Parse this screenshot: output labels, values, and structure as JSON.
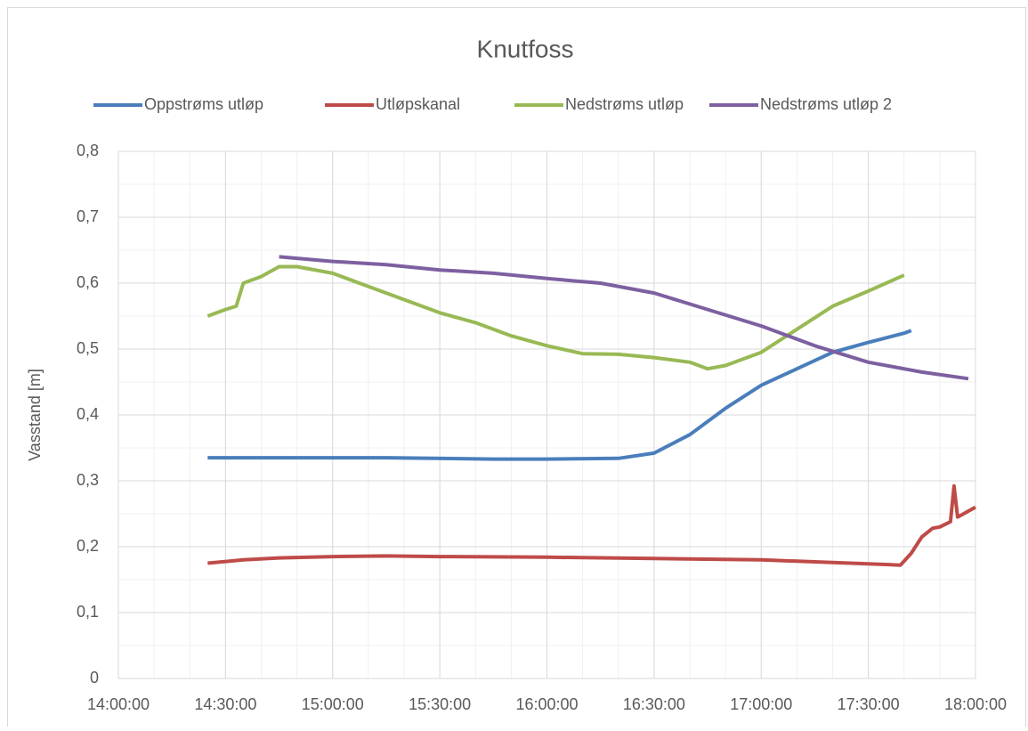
{
  "chart_data": {
    "type": "line",
    "title": "Knutfoss",
    "ylabel": "Vasstand [m]",
    "xlim": [
      "14:00:00",
      "18:00:00"
    ],
    "xticks": [
      "14:00:00",
      "14:30:00",
      "15:00:00",
      "15:30:00",
      "16:00:00",
      "16:30:00",
      "17:00:00",
      "17:30:00",
      "18:00:00"
    ],
    "ylim": [
      0,
      0.8
    ],
    "yticks": [
      {
        "value": 0,
        "label": "0"
      },
      {
        "value": 0.1,
        "label": "0,1"
      },
      {
        "value": 0.2,
        "label": "0,2"
      },
      {
        "value": 0.3,
        "label": "0,3"
      },
      {
        "value": 0.4,
        "label": "0,4"
      },
      {
        "value": 0.5,
        "label": "0,5"
      },
      {
        "value": 0.6,
        "label": "0,6"
      },
      {
        "value": 0.7,
        "label": "0,7"
      },
      {
        "value": 0.8,
        "label": "0,8"
      }
    ],
    "grid": true,
    "legend": "top",
    "series": [
      {
        "name": "Oppstrøms utløp",
        "color": "#4a7ebb",
        "x": [
          "14:25:00",
          "14:45:00",
          "15:15:00",
          "15:45:00",
          "16:00:00",
          "16:20:00",
          "16:30:00",
          "16:40:00",
          "16:50:00",
          "17:00:00",
          "17:10:00",
          "17:20:00",
          "17:30:00",
          "17:40:00",
          "17:42:00"
        ],
        "values": [
          0.335,
          0.335,
          0.335,
          0.333,
          0.333,
          0.334,
          0.342,
          0.37,
          0.41,
          0.445,
          0.47,
          0.495,
          0.51,
          0.524,
          0.528
        ]
      },
      {
        "name": "Utløpskanal",
        "color": "#be4b48",
        "x": [
          "14:25:00",
          "14:35:00",
          "14:45:00",
          "15:00:00",
          "15:15:00",
          "15:30:00",
          "16:00:00",
          "16:30:00",
          "17:00:00",
          "17:20:00",
          "17:35:00",
          "17:39:00",
          "17:42:00",
          "17:45:00",
          "17:48:00",
          "17:50:00",
          "17:53:00",
          "17:54:00",
          "17:55:00",
          "18:00:00"
        ],
        "values": [
          0.175,
          0.18,
          0.183,
          0.185,
          0.186,
          0.185,
          0.184,
          0.182,
          0.18,
          0.176,
          0.173,
          0.172,
          0.19,
          0.215,
          0.228,
          0.23,
          0.238,
          0.292,
          0.245,
          0.26
        ]
      },
      {
        "name": "Nedstrøms utløp",
        "color": "#98b954",
        "x": [
          "14:25:00",
          "14:30:00",
          "14:33:00",
          "14:35:00",
          "14:40:00",
          "14:45:00",
          "14:50:00",
          "15:00:00",
          "15:10:00",
          "15:20:00",
          "15:30:00",
          "15:40:00",
          "15:50:00",
          "16:00:00",
          "16:10:00",
          "16:20:00",
          "16:30:00",
          "16:40:00",
          "16:45:00",
          "16:50:00",
          "17:00:00",
          "17:10:00",
          "17:20:00",
          "17:30:00",
          "17:40:00"
        ],
        "values": [
          0.55,
          0.56,
          0.565,
          0.6,
          0.61,
          0.625,
          0.625,
          0.615,
          0.595,
          0.575,
          0.555,
          0.54,
          0.52,
          0.505,
          0.493,
          0.492,
          0.487,
          0.48,
          0.47,
          0.475,
          0.495,
          0.53,
          0.565,
          0.588,
          0.612
        ]
      },
      {
        "name": "Nedstrøms utløp 2",
        "color": "#7d60a0",
        "x": [
          "14:45:00",
          "15:00:00",
          "15:15:00",
          "15:30:00",
          "15:45:00",
          "16:00:00",
          "16:15:00",
          "16:30:00",
          "16:45:00",
          "17:00:00",
          "17:15:00",
          "17:30:00",
          "17:45:00",
          "17:58:00"
        ],
        "values": [
          0.64,
          0.633,
          0.628,
          0.62,
          0.615,
          0.607,
          0.6,
          0.585,
          0.56,
          0.535,
          0.505,
          0.48,
          0.465,
          0.455
        ]
      }
    ]
  }
}
